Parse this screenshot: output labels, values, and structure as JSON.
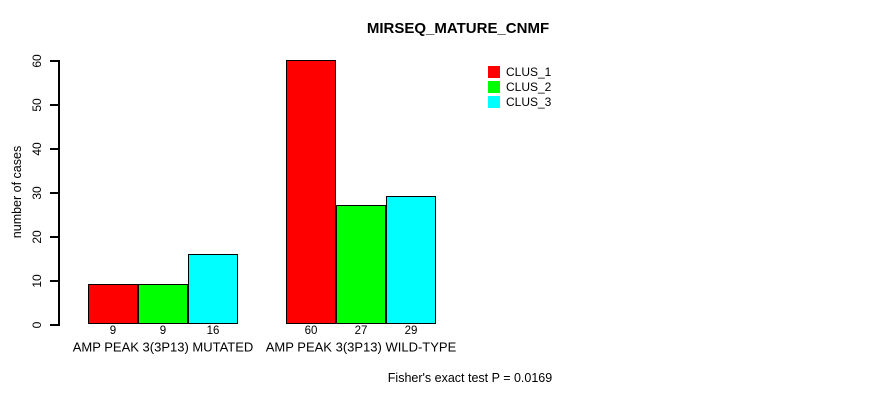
{
  "chart_data": {
    "type": "bar",
    "title": "MIRSEQ_MATURE_CNMF",
    "xlabel": "",
    "ylabel": "number of cases",
    "ylim": [
      0,
      60
    ],
    "yticks": [
      0,
      10,
      20,
      30,
      40,
      50,
      60
    ],
    "grid": false,
    "legend_position": "top-right-inside",
    "bar_value_labels_shown": true,
    "categories": [
      "AMP PEAK 3(3P13) MUTATED",
      "AMP PEAK 3(3P13) WILD-TYPE"
    ],
    "series": [
      {
        "name": "CLUS_1",
        "color": "#ff0000",
        "values": [
          9,
          60
        ]
      },
      {
        "name": "CLUS_2",
        "color": "#00ff00",
        "values": [
          9,
          27
        ]
      },
      {
        "name": "CLUS_3",
        "color": "#00ffff",
        "values": [
          16,
          29
        ]
      }
    ],
    "annotation": "Fisher's exact test P = 0.0169"
  },
  "colors": {
    "axis": "#000000",
    "bar_border": "#000000",
    "background": "#ffffff"
  }
}
